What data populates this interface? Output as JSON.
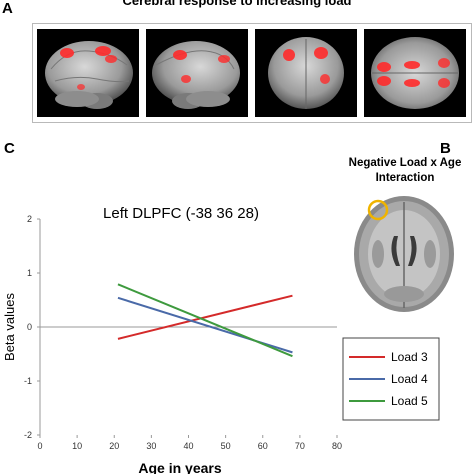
{
  "panels": {
    "a_letter": "A",
    "a_title": "Cerebral response to increasing load",
    "b_letter": "B",
    "b_title_line1": "Negative Load x Age",
    "b_title_line2": "Interaction",
    "c_letter": "C"
  },
  "colors": {
    "load3": "#d42a2a",
    "load4": "#4a6aa8",
    "load5": "#3e9a3e",
    "activation": "#ff2a2a",
    "roi_circle": "#f0b400"
  },
  "chart_data": {
    "type": "line",
    "title": "Left DLPFC (-38 36 28)",
    "xlabel": "Age in years",
    "ylabel": "Beta values",
    "xlim": [
      0,
      80
    ],
    "ylim": [
      -2,
      2
    ],
    "xticks": [
      0,
      10,
      20,
      30,
      40,
      50,
      60,
      70,
      80
    ],
    "yticks": [
      2,
      1,
      0,
      -1,
      -2
    ],
    "legend_position": "bottom-right",
    "grid": false,
    "series": [
      {
        "name": "Load 3",
        "color": "#d42a2a",
        "x": [
          21,
          68
        ],
        "y": [
          -0.22,
          0.58
        ]
      },
      {
        "name": "Load 4",
        "color": "#4a6aa8",
        "x": [
          21,
          68
        ],
        "y": [
          0.54,
          -0.47
        ]
      },
      {
        "name": "Load 5",
        "color": "#3e9a3e",
        "x": [
          21,
          68
        ],
        "y": [
          0.79,
          -0.54
        ]
      }
    ]
  }
}
